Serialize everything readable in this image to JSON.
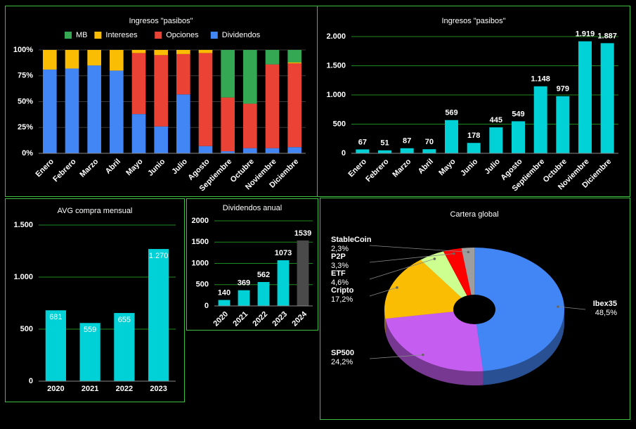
{
  "chart_data": [
    {
      "type": "stacked_bar",
      "title": "Ingresos \"pasibos\"",
      "categories": [
        "Enero",
        "Febrero",
        "Marzo",
        "Abril",
        "Mayo",
        "Junio",
        "Julio",
        "Agosto",
        "Septiembre",
        "Octubre",
        "Noviembre",
        "Diciembre"
      ],
      "series": [
        {
          "name": "MB",
          "color": "#34a853",
          "values": [
            0,
            0,
            0,
            0,
            0,
            0,
            0,
            0,
            46,
            52,
            14,
            12
          ]
        },
        {
          "name": "Intereses",
          "color": "#fbbc04",
          "values": [
            19,
            18,
            15,
            20,
            3,
            5,
            4,
            3,
            0,
            0,
            0,
            1
          ]
        },
        {
          "name": "Opciones",
          "color": "#ea4335",
          "values": [
            0,
            0,
            0,
            0,
            59,
            69,
            39,
            90,
            52,
            43,
            81,
            81
          ]
        },
        {
          "name": "Dividendos",
          "color": "#4285f4",
          "values": [
            81,
            82,
            85,
            80,
            38,
            26,
            57,
            7,
            2,
            5,
            5,
            6
          ]
        }
      ],
      "ylim": [
        0,
        100
      ],
      "yticks": [
        {
          "value": 0,
          "label": "0%"
        },
        {
          "value": 25,
          "label": "25%"
        },
        {
          "value": 50,
          "label": "50%"
        },
        {
          "value": 75,
          "label": "75%"
        },
        {
          "value": 100,
          "label": "100%"
        }
      ],
      "grid": true
    },
    {
      "type": "bar",
      "title": "Ingresos \"pasibos\"",
      "categories": [
        "Enero",
        "Febrero",
        "Marzo",
        "Abril",
        "Mayo",
        "Junio",
        "Julio",
        "Agosto",
        "Septiembre",
        "Octubre",
        "Noviembre",
        "Diciembre"
      ],
      "values": [
        67,
        51,
        87,
        70,
        569,
        178,
        445,
        549,
        1148,
        979,
        1919,
        1887
      ],
      "value_labels": [
        "67",
        "51",
        "87",
        "70",
        "569",
        "178",
        "445",
        "549",
        "1.148",
        "979",
        "1.919",
        "1.887"
      ],
      "color": "#00d1d6",
      "ylim": [
        0,
        2000
      ],
      "yticks": [
        0,
        500,
        {
          "value": 1000,
          "label": "1.000"
        },
        {
          "value": 1500,
          "label": "1.500"
        },
        {
          "value": 2000,
          "label": "2.000"
        }
      ],
      "grid": true
    },
    {
      "type": "bar",
      "title": "AVG compra mensual",
      "categories": [
        "2020",
        "2021",
        "2022",
        "2023"
      ],
      "values": [
        681,
        559,
        655,
        1270
      ],
      "value_labels": [
        "681",
        "559",
        "655",
        "1.270"
      ],
      "color": "#00d1d6",
      "ylim": [
        0,
        1500
      ],
      "yticks": [
        0,
        500,
        {
          "value": 1000,
          "label": "1.000"
        },
        {
          "value": 1500,
          "label": "1.500"
        }
      ],
      "grid": true
    },
    {
      "type": "bar",
      "title": "Dividendos anual",
      "categories": [
        "2020",
        "2021",
        "2022",
        "2023",
        "2024"
      ],
      "values": [
        140,
        369,
        562,
        1073,
        1539
      ],
      "colors": [
        "#00d1d6",
        "#00d1d6",
        "#00d1d6",
        "#00d1d6",
        "#4a4a4a"
      ],
      "ylim": [
        0,
        2000
      ],
      "yticks": [
        0,
        500,
        1000,
        1500,
        2000
      ],
      "grid": true
    },
    {
      "type": "pie",
      "title": "Cartera global",
      "categories": [
        "Ibex35",
        "SP500",
        "Cripto",
        "ETF",
        "P2P",
        "StableCoin"
      ],
      "values": [
        48.5,
        24.2,
        17.2,
        4.6,
        3.3,
        2.3
      ],
      "value_labels": [
        "48,5%",
        "24,2%",
        "17,2%",
        "4,6%",
        "3,3%",
        "2,3%"
      ],
      "colors": [
        "#4285f4",
        "#c55ef0",
        "#fbbc04",
        "#ccff90",
        "#ff0000",
        "#9e9e9e"
      ]
    }
  ]
}
